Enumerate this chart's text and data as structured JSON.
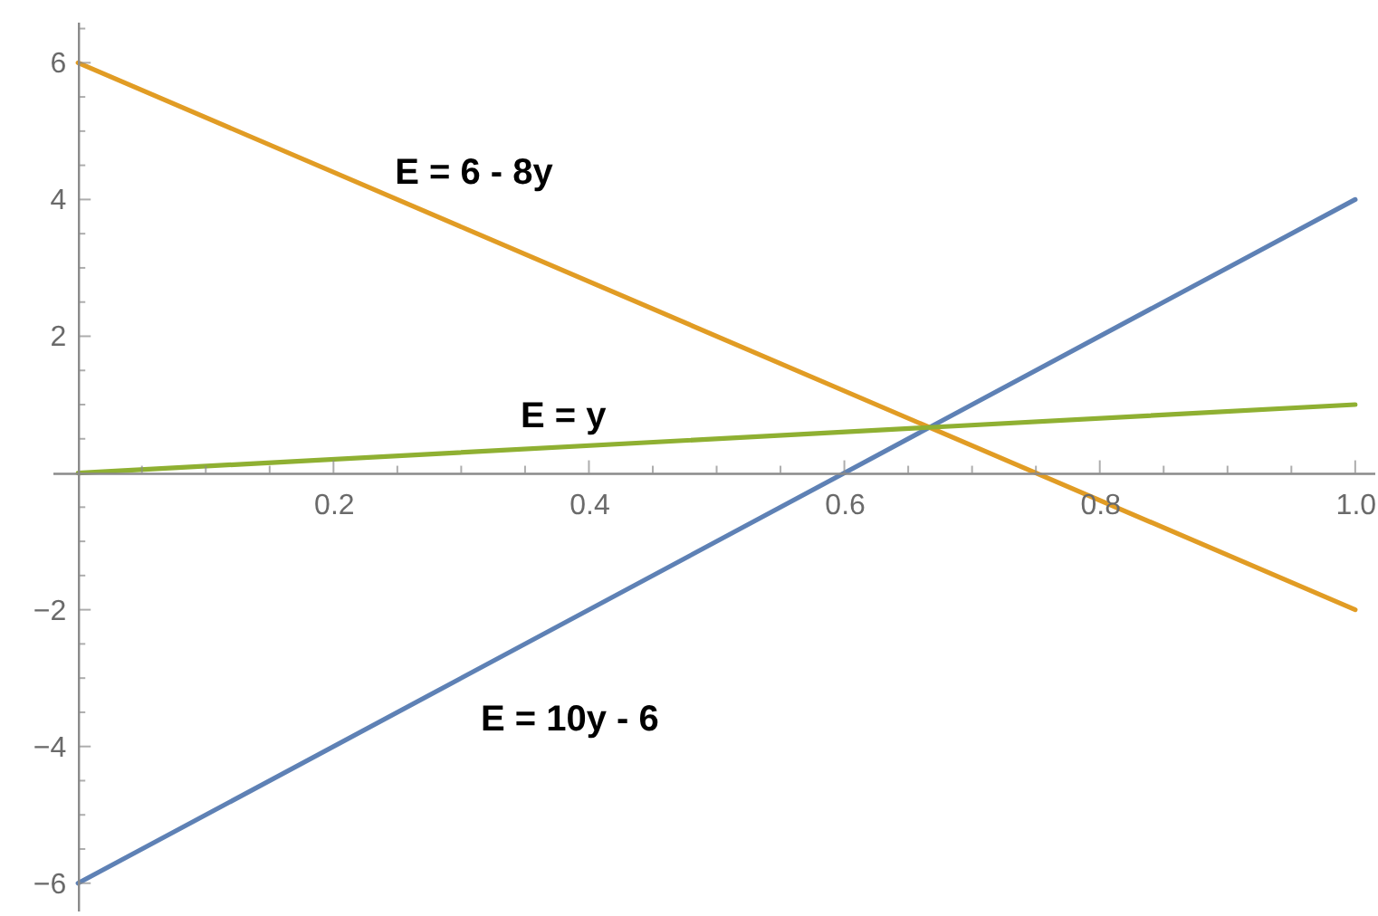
{
  "chart_data": {
    "type": "line",
    "x": [
      0,
      1
    ],
    "xlim": [
      -0.02,
      1.015
    ],
    "ylim": [
      -6.4,
      6.6
    ],
    "xticks": [
      {
        "value": 0.05,
        "label": null
      },
      {
        "value": 0.1,
        "label": null
      },
      {
        "value": 0.15,
        "label": null
      },
      0.2,
      {
        "value": 0.25,
        "label": null
      },
      {
        "value": 0.3,
        "label": null
      },
      {
        "value": 0.35,
        "label": null
      },
      0.4,
      {
        "value": 0.45,
        "label": null
      },
      {
        "value": 0.5,
        "label": null
      },
      {
        "value": 0.55,
        "label": null
      },
      0.6,
      {
        "value": 0.65,
        "label": null
      },
      {
        "value": 0.7,
        "label": null
      },
      {
        "value": 0.75,
        "label": null
      },
      0.8,
      {
        "value": 0.85,
        "label": null
      },
      {
        "value": 0.9,
        "label": null
      },
      {
        "value": 0.95,
        "label": null
      },
      {
        "value": 1,
        "label": "1.0"
      }
    ],
    "yticks": [
      {
        "value": -6,
        "label": "−6"
      },
      {
        "value": -5.5,
        "label": null
      },
      {
        "value": -5,
        "label": null
      },
      {
        "value": -4.5,
        "label": null
      },
      {
        "value": -4,
        "label": "−4"
      },
      {
        "value": -3.5,
        "label": null
      },
      {
        "value": -3,
        "label": null
      },
      {
        "value": -2.5,
        "label": null
      },
      {
        "value": -2,
        "label": "−2"
      },
      {
        "value": -1.5,
        "label": null
      },
      {
        "value": -1,
        "label": null
      },
      {
        "value": -0.5,
        "label": null
      },
      {
        "value": 0.5,
        "label": null
      },
      {
        "value": 1,
        "label": null
      },
      {
        "value": 1.5,
        "label": null
      },
      2,
      {
        "value": 2.5,
        "label": null
      },
      {
        "value": 3,
        "label": null
      },
      {
        "value": 3.5,
        "label": null
      },
      4,
      {
        "value": 4.5,
        "label": null
      },
      {
        "value": 5,
        "label": null
      },
      {
        "value": 5.5,
        "label": null
      },
      6,
      {
        "value": 6.5,
        "label": null
      }
    ],
    "series": [
      {
        "name": "E = 10y - 6",
        "color": "#5e81b5",
        "values": [
          -6,
          4
        ]
      },
      {
        "name": "E = 6 - 8y",
        "color": "#e19c24",
        "values": [
          6,
          -2
        ]
      },
      {
        "name": "E = y",
        "color": "#8fb032",
        "values": [
          0,
          1
        ]
      }
    ],
    "grid": false,
    "marker": "none",
    "line_style": "solid"
  }
}
